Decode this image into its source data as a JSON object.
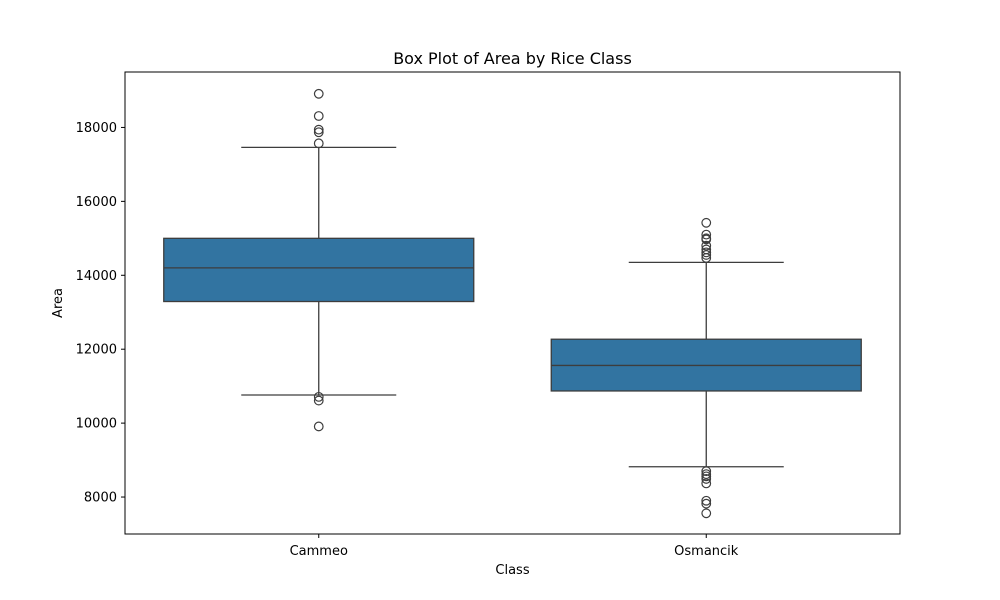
{
  "chart_data": {
    "type": "box",
    "title": "Box Plot of Area by Rice Class",
    "xlabel": "Class",
    "ylabel": "Area",
    "ylim": [
      7000,
      19500
    ],
    "yticks": [
      8000,
      10000,
      12000,
      14000,
      16000,
      18000
    ],
    "grid": false,
    "box_color": "#3274a1",
    "line_color": "#3d3d3d",
    "categories": [
      "Cammeo",
      "Osmancik"
    ],
    "boxes": [
      {
        "category": "Cammeo",
        "whisker_low": 10760,
        "q1": 13290,
        "median": 14200,
        "q3": 15000,
        "whisker_high": 17460,
        "outliers": [
          18910,
          18310,
          17940,
          17870,
          17570,
          10710,
          10610,
          9910
        ]
      },
      {
        "category": "Osmancik",
        "whisker_low": 8820,
        "q1": 10870,
        "median": 11560,
        "q3": 12270,
        "whisker_high": 14350,
        "outliers": [
          15420,
          15100,
          15000,
          14970,
          14800,
          14700,
          14620,
          14550,
          14470,
          8700,
          8620,
          8560,
          8490,
          8370,
          7900,
          7820,
          7560
        ]
      }
    ]
  }
}
